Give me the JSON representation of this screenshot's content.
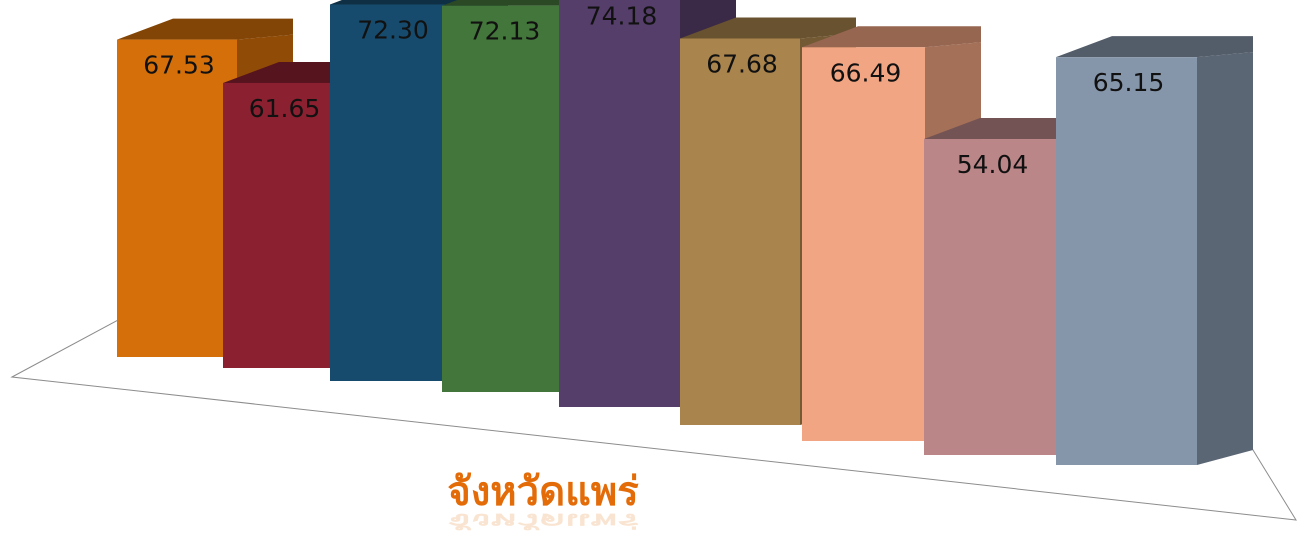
{
  "chart_data": {
    "type": "bar",
    "categories": [
      "จังหวัดแพร่"
    ],
    "series": [
      {
        "values": [
          67.53
        ],
        "color": "#d46f0a"
      },
      {
        "values": [
          61.65
        ],
        "color": "#8b2130"
      },
      {
        "values": [
          72.3
        ],
        "color": "#174b6d"
      },
      {
        "values": [
          72.13
        ],
        "color": "#43763a"
      },
      {
        "values": [
          74.18
        ],
        "color": "#553e69"
      },
      {
        "values": [
          67.68
        ],
        "color": "#a9844c"
      },
      {
        "values": [
          66.49
        ],
        "color": "#f2a582"
      },
      {
        "values": [
          54.04
        ],
        "color": "#bb8688"
      },
      {
        "values": [
          65.15
        ],
        "color": "#8696aa"
      }
    ],
    "data_labels": [
      "67.53",
      "61.65",
      "72.30",
      "72.13",
      "74.18",
      "67.68",
      "66.49",
      "54.04",
      "65.15"
    ],
    "legend": "none",
    "grid": false,
    "style": "3d-clustered-column"
  }
}
